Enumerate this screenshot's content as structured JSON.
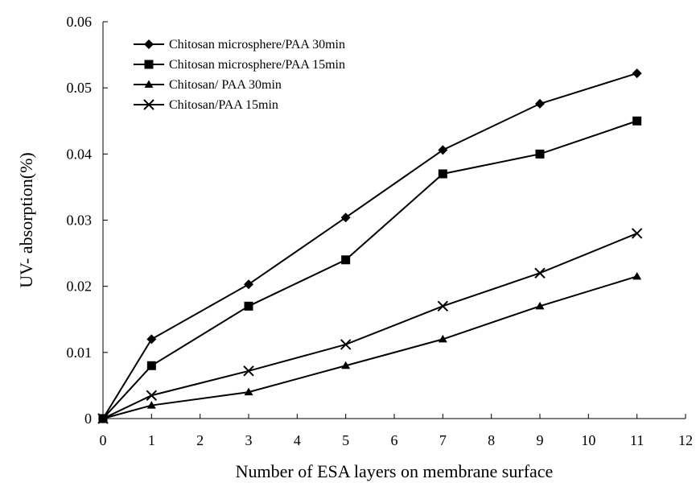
{
  "chart_data": {
    "type": "line",
    "xlabel": "Number of ESA layers on membrane surface",
    "ylabel": "UV- absorption(%)",
    "xlim": [
      0,
      12
    ],
    "ylim": [
      0,
      0.06
    ],
    "xticks": [
      "0",
      "1",
      "2",
      "3",
      "4",
      "5",
      "6",
      "7",
      "8",
      "9",
      "10",
      "11",
      "12"
    ],
    "yticks": [
      "0",
      "0.01",
      "0.02",
      "0.03",
      "0.04",
      "0.05",
      "0.06"
    ],
    "grid": false,
    "legend_position": "top-left",
    "x": [
      0,
      1,
      3,
      5,
      7,
      9,
      11
    ],
    "series": [
      {
        "name": "Chitosan microsphere/PAA 30min",
        "marker": "diamond",
        "values": [
          0,
          0.012,
          0.0203,
          0.0304,
          0.0406,
          0.0476,
          0.0522
        ]
      },
      {
        "name": "Chitosan microsphere/PAA 15min",
        "marker": "square",
        "values": [
          0,
          0.008,
          0.017,
          0.024,
          0.037,
          0.04,
          0.045
        ]
      },
      {
        "name": "Chitosan/ PAA 30min",
        "marker": "triangle",
        "values": [
          0,
          0.002,
          0.004,
          0.008,
          0.012,
          0.017,
          0.0215
        ]
      },
      {
        "name": "Chitosan/PAA 15min",
        "marker": "x",
        "values": [
          0,
          0.0035,
          0.0072,
          0.0112,
          0.017,
          0.022,
          0.028
        ]
      }
    ],
    "colors": {
      "line": "#000000",
      "background": "#ffffff"
    }
  }
}
